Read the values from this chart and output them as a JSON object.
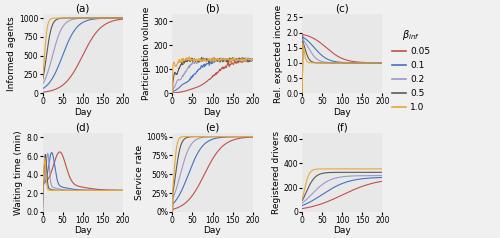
{
  "beta_values": [
    0.05,
    0.1,
    0.2,
    0.5,
    1.0
  ],
  "colors": [
    "#c0504d",
    "#4472c4",
    "#9b97c9",
    "#595959",
    "#e8a838"
  ],
  "days": 200,
  "title_fontsize": 7.5,
  "label_fontsize": 6.5,
  "tick_fontsize": 5.5,
  "subplot_labels": [
    "(a)",
    "(b)",
    "(c)",
    "(d)",
    "(e)",
    "(f)"
  ],
  "ylabels": [
    "Informed agents",
    "Participation volume",
    "Rel. expected income",
    "Waiting time (min)",
    "Service rate",
    "Registered drivers"
  ],
  "xlabel": "Day",
  "background_color": "#e8e8e8",
  "fig_facecolor": "#f0f0f0"
}
